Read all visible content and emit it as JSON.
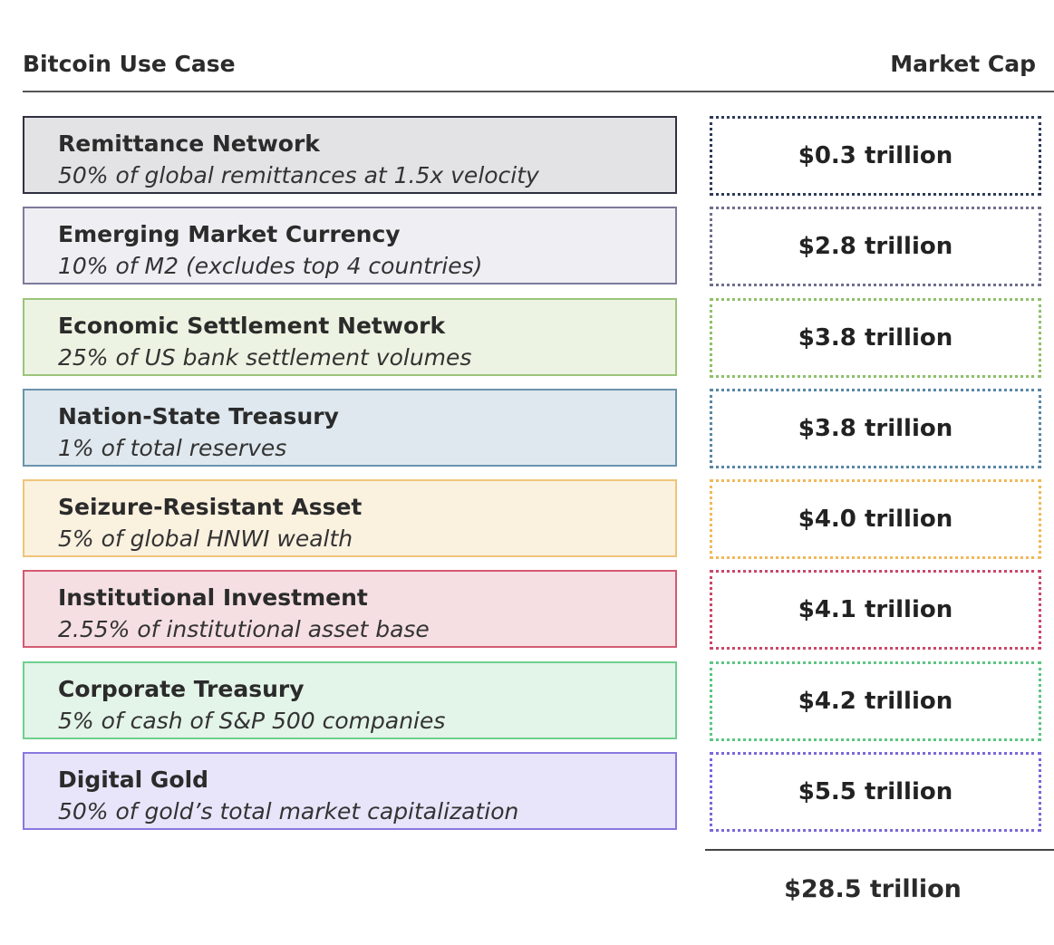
{
  "header": {
    "left_label": "Bitcoin Use Case",
    "right_label": "Market Cap"
  },
  "rows": [
    {
      "title": "Remittance Network",
      "desc": "50% of global remittances at 1.5x velocity",
      "cap": "$0.3 trillion",
      "fill": "#e3e3e6",
      "border": "#2f3040",
      "dot": "#2f3b5a"
    },
    {
      "title": "Emerging Market Currency",
      "desc": "10% of M2 (excludes top 4 countries)",
      "cap": "$2.8 trillion",
      "fill": "#efeff3",
      "border": "#7c7a9a",
      "dot": "#6f6f8f"
    },
    {
      "title": "Economic Settlement Network",
      "desc": "25% of US bank settlement volumes",
      "cap": "$3.8 trillion",
      "fill": "#edf3e2",
      "border": "#9cc47a",
      "dot": "#8fc06a"
    },
    {
      "title": "Nation-State Treasury",
      "desc": "1% of total reserves",
      "cap": "$3.8 trillion",
      "fill": "#dfe8ee",
      "border": "#6a93ad",
      "dot": "#5a87a6"
    },
    {
      "title": "Seizure-Resistant Asset",
      "desc": "5% of global HNWI wealth",
      "cap": "$4.0 trillion",
      "fill": "#fbf1df",
      "border": "#efc47a",
      "dot": "#f0b95a"
    },
    {
      "title": "Institutional Investment",
      "desc": "2.55% of institutional asset base",
      "cap": "$4.1 trillion",
      "fill": "#f5dfe3",
      "border": "#d35b72",
      "dot": "#c9486a"
    },
    {
      "title": "Corporate Treasury",
      "desc": "5% of cash of S&P 500 companies",
      "cap": "$4.2 trillion",
      "fill": "#e3f4e8",
      "border": "#6fcf8f",
      "dot": "#5cc683"
    },
    {
      "title": "Digital Gold",
      "desc": "50% of gold’s total market capitalization",
      "cap": "$5.5 trillion",
      "fill": "#e8e4fa",
      "border": "#8a78e0",
      "dot": "#7a68d8"
    }
  ],
  "total": "$28.5 trillion"
}
